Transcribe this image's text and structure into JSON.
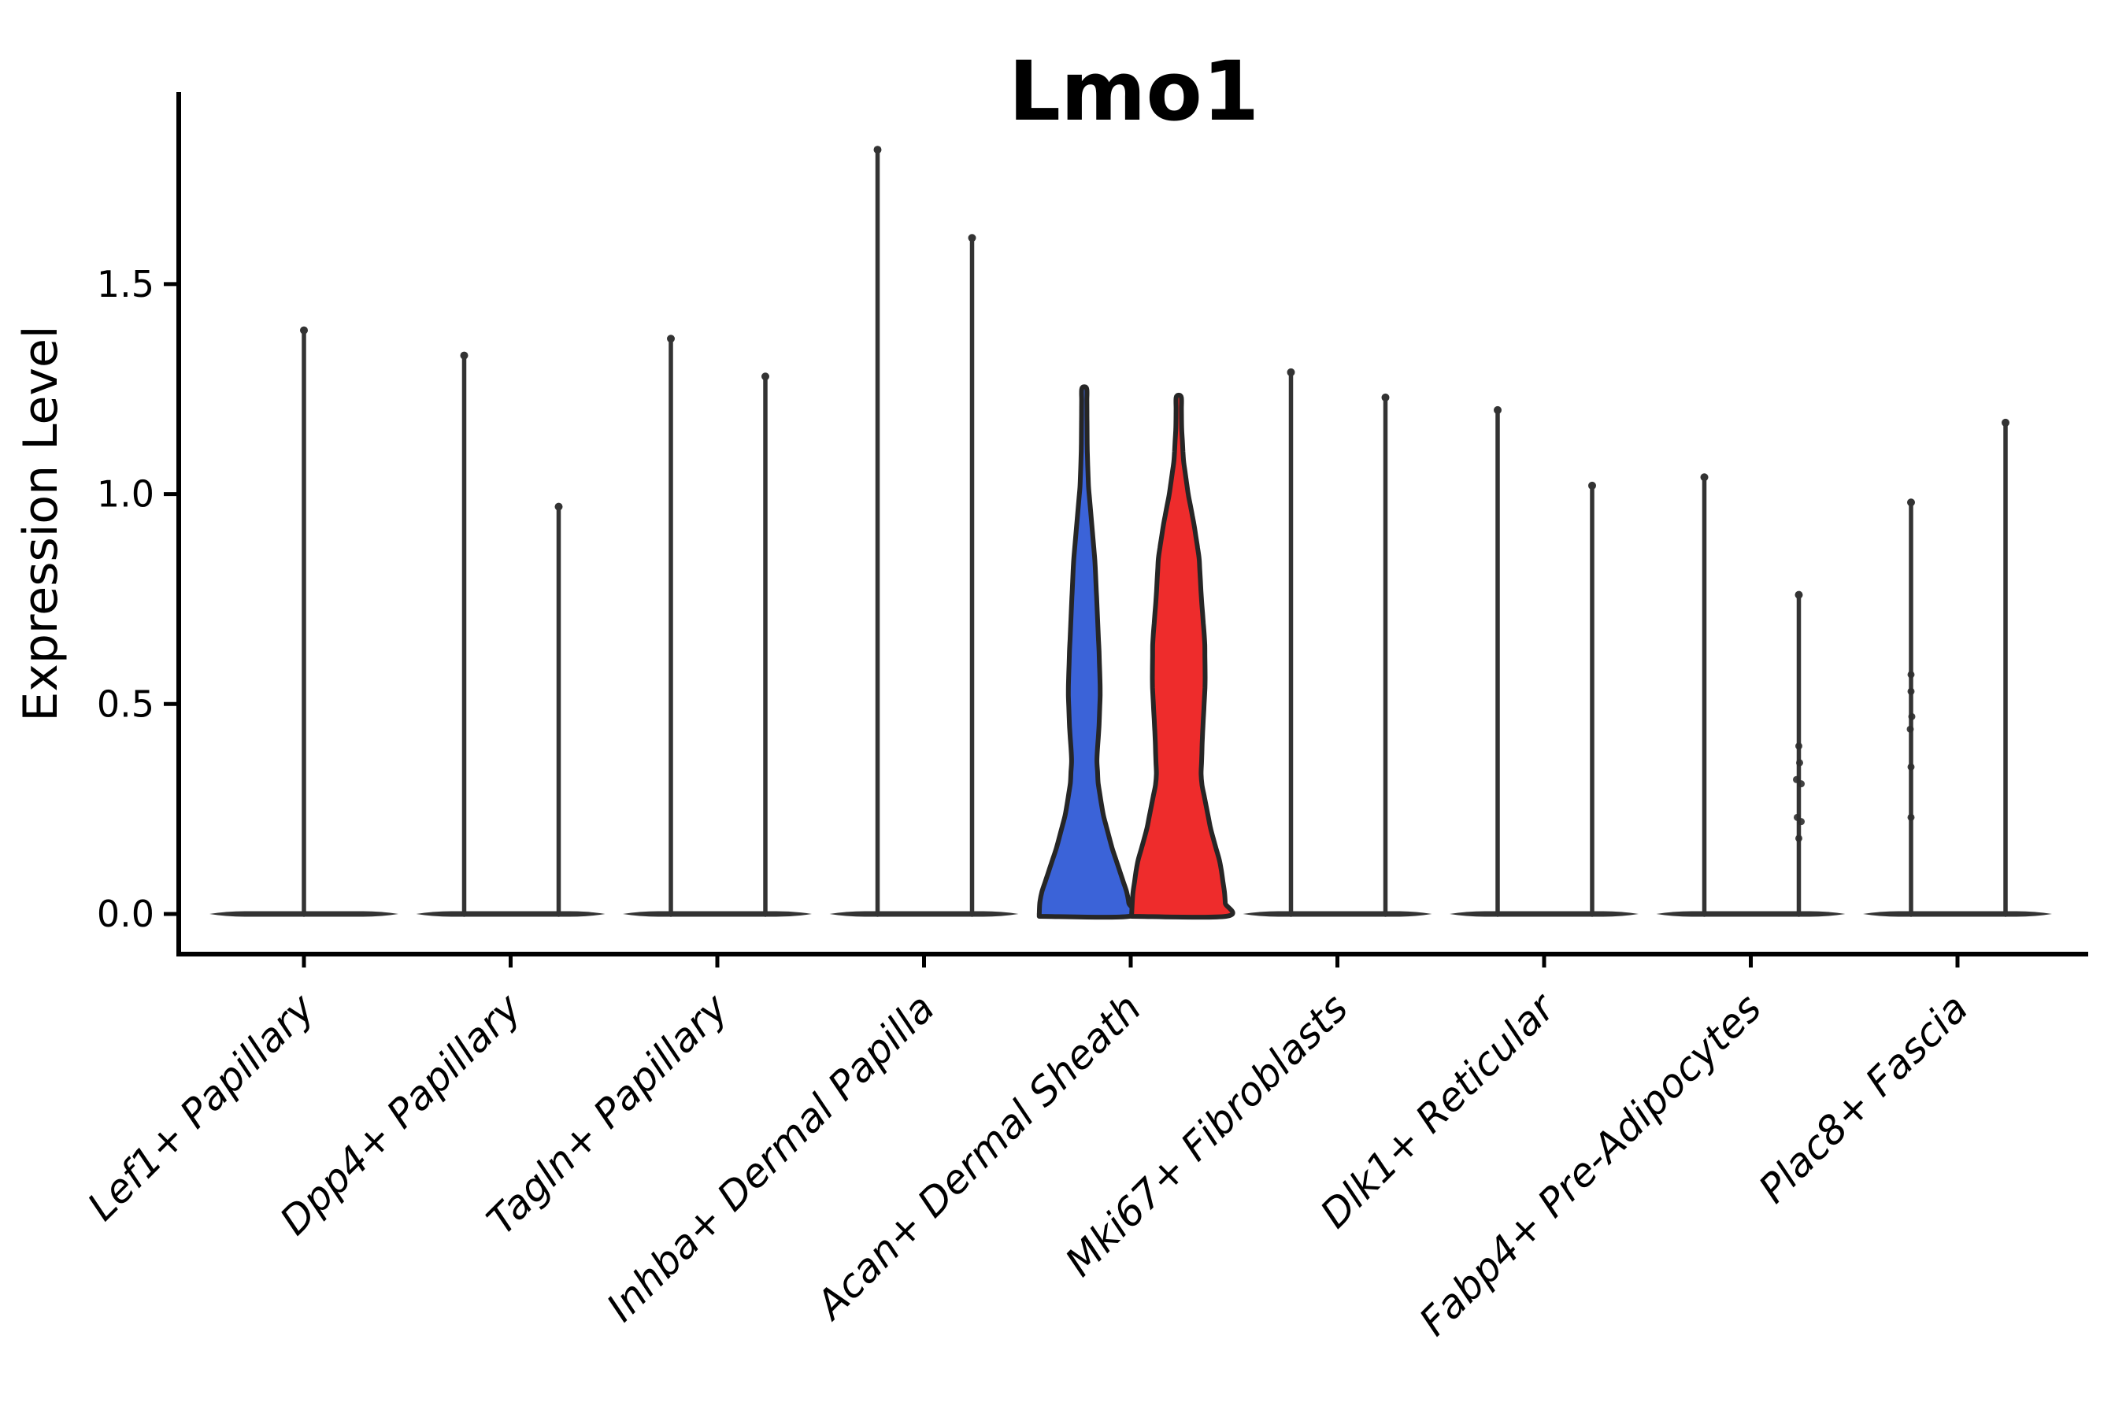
{
  "figure": {
    "title": "Lmo1",
    "ylabel": "Expression Level"
  },
  "chart_data": {
    "type": "violin",
    "title": "Lmo1",
    "xlabel": "",
    "ylabel": "Expression Level",
    "ytick_labels": [
      "0.0",
      "0.5",
      "1.0",
      "1.5"
    ],
    "ytick_values": [
      0.0,
      0.5,
      1.0,
      1.5
    ],
    "ylim": [
      -0.09,
      1.95
    ],
    "legend": "none",
    "grid": false,
    "split_colors": {
      "group1": "#3B63D8",
      "group2": "#EE2C2C"
    },
    "outline_color": "#262626",
    "line_color": "#333333",
    "axis_color": "#000000",
    "categories": [
      {
        "label": "Lef1+ Papillary",
        "violins": [
          {
            "side": "center",
            "shape": "spike",
            "max": 1.39
          }
        ]
      },
      {
        "label": "Dpp4+ Papillary",
        "violins": [
          {
            "side": "left",
            "shape": "spike",
            "max": 1.33
          },
          {
            "side": "right",
            "shape": "spike",
            "max": 0.97
          }
        ]
      },
      {
        "label": "Tagln+ Papillary",
        "violins": [
          {
            "side": "left",
            "shape": "spike",
            "max": 1.37
          },
          {
            "side": "right",
            "shape": "spike",
            "max": 1.28
          }
        ]
      },
      {
        "label": "Inhba+ Dermal Papilla",
        "violins": [
          {
            "side": "left",
            "shape": "spike",
            "max": 1.82
          },
          {
            "side": "right",
            "shape": "spike",
            "max": 1.61
          }
        ]
      },
      {
        "label": "Acan+ Dermal Sheath",
        "violins": [
          {
            "side": "left",
            "shape": "violin",
            "max": 1.25,
            "fill": "group1",
            "halfwidth": 59,
            "profile": [
              [
                0,
                0.97
              ],
              [
                0.04,
                0.95
              ],
              [
                0.09,
                0.8
              ],
              [
                0.16,
                0.59
              ],
              [
                0.24,
                0.4
              ],
              [
                0.31,
                0.3
              ],
              [
                0.37,
                0.27
              ],
              [
                0.45,
                0.32
              ],
              [
                0.53,
                0.345
              ],
              [
                0.62,
                0.32
              ],
              [
                0.72,
                0.28
              ],
              [
                0.84,
                0.23
              ],
              [
                0.93,
                0.16
              ],
              [
                1.02,
                0.09
              ],
              [
                1.1,
                0.065
              ],
              [
                1.18,
                0.058
              ],
              [
                1.25,
                0.055
              ]
            ]
          },
          {
            "side": "right",
            "shape": "violin",
            "max": 1.23,
            "fill": "group2",
            "halfwidth": 60,
            "profile": [
              [
                0,
                1.0
              ],
              [
                0.05,
                0.97
              ],
              [
                0.12,
                0.88
              ],
              [
                0.2,
                0.68
              ],
              [
                0.32,
                0.47
              ],
              [
                0.42,
                0.5
              ],
              [
                0.55,
                0.56
              ],
              [
                0.65,
                0.55
              ],
              [
                0.75,
                0.48
              ],
              [
                0.85,
                0.43
              ],
              [
                0.93,
                0.32
              ],
              [
                1.0,
                0.2
              ],
              [
                1.08,
                0.1
              ],
              [
                1.16,
                0.06
              ],
              [
                1.23,
                0.055
              ]
            ]
          }
        ]
      },
      {
        "label": "Mki67+ Fibroblasts",
        "violins": [
          {
            "side": "left",
            "shape": "spike",
            "max": 1.29
          },
          {
            "side": "right",
            "shape": "spike",
            "max": 1.23
          }
        ]
      },
      {
        "label": "Dlk1+ Reticular",
        "violins": [
          {
            "side": "left",
            "shape": "spike",
            "max": 1.2
          },
          {
            "side": "right",
            "shape": "spike",
            "max": 1.02
          }
        ]
      },
      {
        "label": "Fabp4+ Pre-Adipocytes",
        "violins": [
          {
            "side": "left",
            "shape": "spike",
            "max": 1.04
          },
          {
            "side": "right",
            "shape": "spike",
            "max": 0.76,
            "jitter": [
              0.4,
              0.36,
              0.32,
              0.31,
              0.23,
              0.22,
              0.18
            ],
            "jitter_dx": [
              0,
              1,
              -3,
              3,
              -2,
              3,
              0
            ]
          }
        ]
      },
      {
        "label": "Plac8+ Fascia",
        "violins": [
          {
            "side": "left",
            "shape": "spike",
            "max": 0.98,
            "jitter": [
              0.57,
              0.53,
              0.47,
              0.44,
              0.35,
              0.23
            ],
            "jitter_dx": [
              0,
              0,
              1,
              -1,
              0,
              0
            ]
          },
          {
            "side": "right",
            "shape": "spike",
            "max": 1.17
          }
        ]
      }
    ]
  }
}
